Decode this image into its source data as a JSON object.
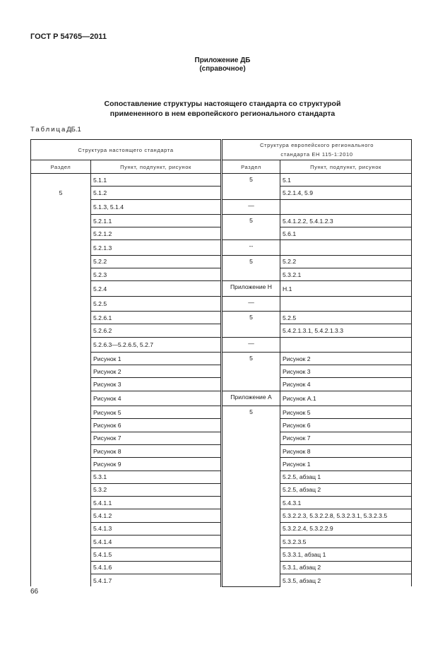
{
  "header": {
    "standard": "ГОСТ Р 54765—2011"
  },
  "appendix": {
    "title": "Приложение ДБ",
    "subtitle": "(справочное)"
  },
  "document_title": {
    "line1": "Сопоставление структуры настоящего стандарта со структурой",
    "line2": "примененного в нем европейского регионального стандарта"
  },
  "table_label": {
    "prefix": "Таблица",
    "number": "ДБ.1"
  },
  "table": {
    "group_headers": [
      "Структура настоящего стандарта",
      "Структура европейского регионального",
      "стандарта ЕН 115-1:2010"
    ],
    "columns": [
      "Раздел",
      "Пункт, подпункт, рисунок",
      "Раздел",
      "Пункт, подпункт, рисунок"
    ],
    "left_section": "5",
    "left_items": [
      "5.1.1",
      "5.1.2",
      "5.1.3, 5.1.4",
      "5.2.1.1",
      "5.2.1.2",
      "5.2.1.3",
      "5.2.2",
      "5.2.3",
      "5.2.4",
      "5.2.5",
      "5.2.6.1",
      "5.2.6.2",
      "5.2.6.3—5.2.6.5, 5.2.7",
      "Рисунок 1",
      "Рисунок 2",
      "Рисунок 3",
      "Рисунок 4",
      "Рисунок 5",
      "Рисунок 6",
      "Рисунок 7",
      "Рисунок 8",
      "Рисунок 9",
      "5.3.1",
      "5.3.2",
      "5.4.1.1",
      "5.4.1.2",
      "5.4.1.3",
      "5.4.1.4",
      "5.4.1.5",
      "5.4.1.6",
      "5.4.1.7"
    ],
    "right_sections": [
      {
        "label": "5",
        "span": 2
      },
      {
        "label": "—",
        "span": 1
      },
      {
        "label": "5",
        "span": 2
      },
      {
        "label": "--",
        "span": 1
      },
      {
        "label": "5",
        "span": 2
      },
      {
        "label": "Приложение Н",
        "span": 1
      },
      {
        "label": "—",
        "span": 1
      },
      {
        "label": "5",
        "span": 2
      },
      {
        "label": "—",
        "span": 1
      },
      {
        "label": "5",
        "span": 3
      },
      {
        "label": "Приложение А",
        "span": 1
      },
      {
        "label": "5",
        "span": 14
      }
    ],
    "right_items": [
      "5.1",
      "5.2.1.4, 5.9",
      "",
      "5.4.1.2.2, 5.4.1.2.3",
      "5.6.1",
      "",
      "5.2.2",
      "5.3.2.1",
      "Н.1",
      "",
      "5.2.5",
      "5.4.2.1.3.1,  5.4.2.1.3.3",
      "",
      "Рисунок 2",
      "Рисунок 3",
      "Рисунок 4",
      "Рисунок А.1",
      "Рисунок 5",
      "Рисунок 6",
      "Рисунок 7",
      "Рисунок 8",
      "Рисунок 1",
      "5.2.5, абзац 1",
      "5.2.5, абзац 2",
      "5.4.3.1",
      "5.3.2.2.3, 5.3.2.2.8, 5.3.2.3.1, 5.3.2.3.5",
      "5.3.2.2.4, 5.3.2.2.9",
      "5.3.2.3.5",
      "5.3.3.1, абзац 1",
      "5.3.1, абзац 2",
      "5.3.5, абзац 2"
    ]
  },
  "page_number": "66"
}
